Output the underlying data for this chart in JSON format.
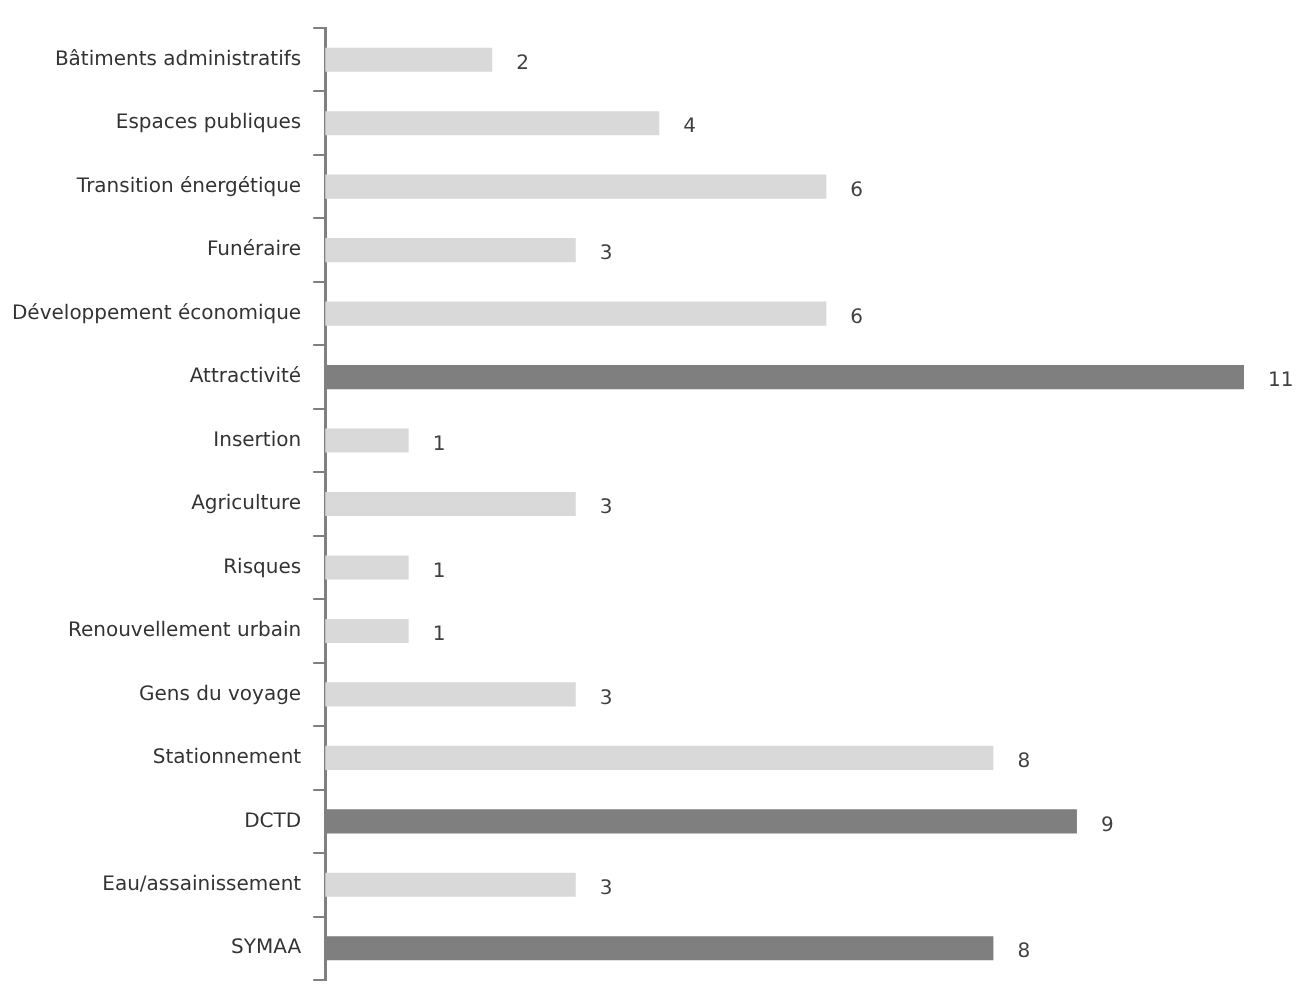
{
  "chart_data": {
    "type": "bar",
    "orientation": "horizontal",
    "categories": [
      "Bâtiments administratifs",
      "Espaces publiques",
      "Transition énergétique",
      "Funéraire",
      "Développement économique",
      "Attractivité",
      "Insertion",
      "Agriculture",
      "Risques",
      "Renouvellement urbain",
      "Gens du voyage",
      "Stationnement",
      "DCTD",
      "Eau/assainissement",
      "SYMAA"
    ],
    "values": [
      2,
      4,
      6,
      3,
      6,
      11,
      1,
      3,
      1,
      1,
      3,
      8,
      9,
      3,
      8
    ],
    "colors": [
      "#d9d9d9",
      "#d9d9d9",
      "#d9d9d9",
      "#d9d9d9",
      "#d9d9d9",
      "#7f7f7f",
      "#d9d9d9",
      "#d9d9d9",
      "#d9d9d9",
      "#d9d9d9",
      "#d9d9d9",
      "#d9d9d9",
      "#7f7f7f",
      "#d9d9d9",
      "#7f7f7f"
    ],
    "xlim": [
      0,
      11
    ],
    "tick_labels": "y",
    "data_labels": true,
    "grid": false,
    "legend": false
  }
}
